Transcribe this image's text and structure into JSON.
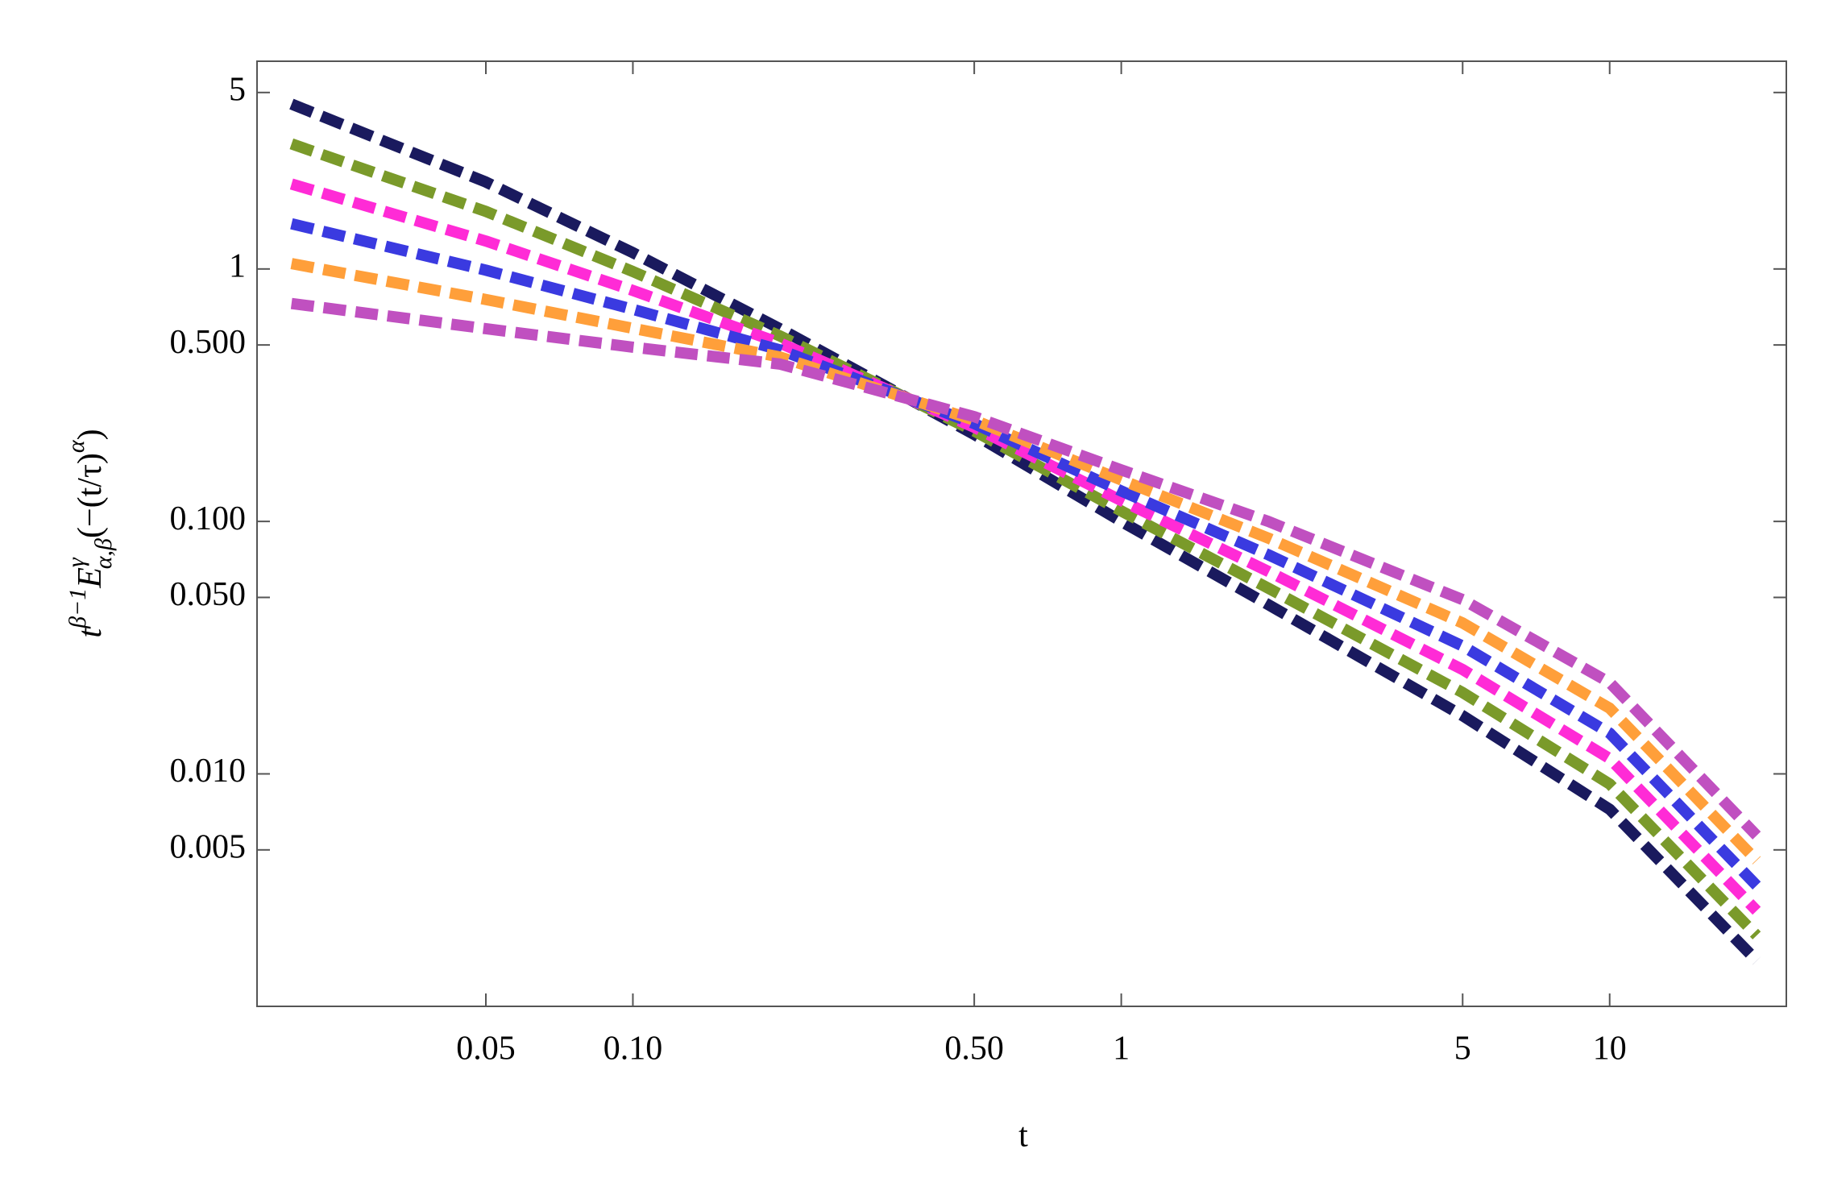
{
  "chart_data": {
    "type": "line",
    "log_x": true,
    "log_y": true,
    "x_label": "t",
    "y_label_parts": [
      "t",
      "β−1",
      "E",
      "γ",
      "α,β",
      "(−(t/τ)",
      "α",
      ")"
    ],
    "xlim": [
      0.017,
      23
    ],
    "ylim": [
      0.0012,
      6.65
    ],
    "xticks": [
      0.05,
      {
        "value": 0.1,
        "label": "0.10"
      },
      {
        "value": 0.5,
        "label": "0.50"
      },
      1,
      5,
      10
    ],
    "yticks": [
      5,
      1,
      {
        "value": 0.5,
        "label": "0.500"
      },
      {
        "value": 0.1,
        "label": "0.100"
      },
      {
        "value": 0.05,
        "label": "0.050"
      },
      {
        "value": 0.01,
        "label": "0.010"
      },
      0.005
    ],
    "x": [
      0.02,
      0.05,
      0.1,
      0.2,
      0.5,
      1,
      2,
      5,
      10,
      20
    ],
    "series": [
      {
        "color": "#1a1a5e",
        "values": [
          4.5,
          2.21,
          1.16,
          0.58,
          0.221,
          0.1,
          0.0468,
          0.017,
          0.00724,
          0.00182
        ]
      },
      {
        "color": "#7a9a2a",
        "values": [
          3.13,
          1.69,
          0.977,
          0.543,
          0.228,
          0.11,
          0.0544,
          0.021,
          0.00912,
          0.00229
        ]
      },
      {
        "color": "#ff2bd6",
        "values": [
          2.17,
          1.29,
          0.822,
          0.509,
          0.236,
          0.121,
          0.0634,
          0.0259,
          0.0115,
          0.00287
        ]
      },
      {
        "color": "#3a3ae0",
        "values": [
          1.51,
          0.989,
          0.692,
          0.478,
          0.244,
          0.132,
          0.0738,
          0.0321,
          0.0145,
          0.00361
        ]
      },
      {
        "color": "#ff9f3a",
        "values": [
          1.05,
          0.757,
          0.582,
          0.448,
          0.252,
          0.146,
          0.0859,
          0.0396,
          0.0182,
          0.00454
        ]
      },
      {
        "color": "#c050c0",
        "values": [
          0.73,
          0.58,
          0.49,
          0.42,
          0.26,
          0.16,
          0.1,
          0.049,
          0.023,
          0.0057
        ]
      }
    ]
  }
}
